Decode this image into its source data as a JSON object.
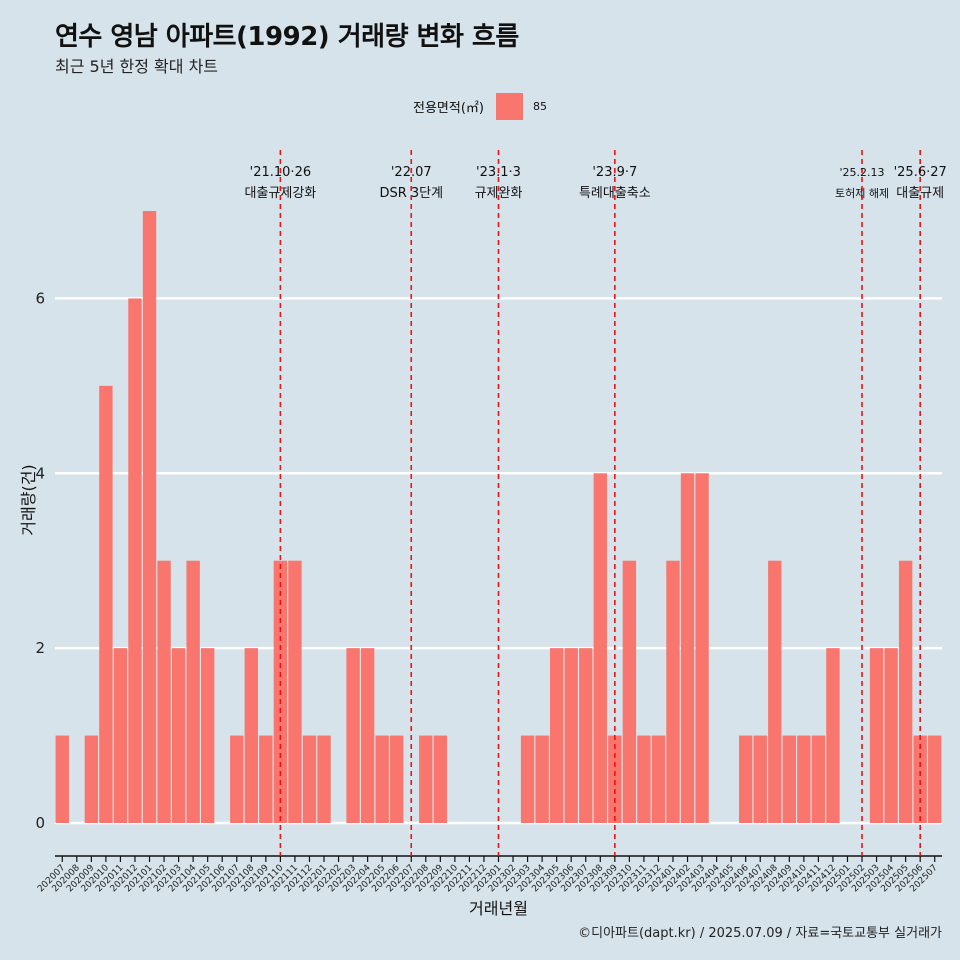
{
  "title": "연수 영남 아파트(1992) 거래량 변화 흐름",
  "subtitle": "최근 5년 한정 확대 차트",
  "legend": {
    "title": "전용면적(㎡)",
    "entry": "85",
    "color": "#f8766d"
  },
  "caption": "©디아파트(dapt.kr) / 2025.07.09 / 자료=국토교통부 실거래가",
  "chart_data": {
    "type": "bar",
    "xlabel": "거래년월",
    "ylabel": "거래량(건)",
    "ylim": [
      0,
      7
    ],
    "yticks": [
      0,
      2,
      4,
      6
    ],
    "grid": true,
    "categories": [
      "202007",
      "202008",
      "202009",
      "202010",
      "202011",
      "202012",
      "202101",
      "202102",
      "202103",
      "202104",
      "202105",
      "202106",
      "202107",
      "202108",
      "202109",
      "202110",
      "202111",
      "202112",
      "202201",
      "202202",
      "202203",
      "202204",
      "202205",
      "202206",
      "202207",
      "202208",
      "202209",
      "202210",
      "202211",
      "202212",
      "202301",
      "202302",
      "202303",
      "202304",
      "202305",
      "202306",
      "202307",
      "202308",
      "202309",
      "202310",
      "202311",
      "202312",
      "202401",
      "202402",
      "202403",
      "202404",
      "202405",
      "202406",
      "202407",
      "202408",
      "202409",
      "202410",
      "202411",
      "202412",
      "202501",
      "202502",
      "202503",
      "202504",
      "202505",
      "202506",
      "202507"
    ],
    "series": [
      {
        "name": "85",
        "values": [
          1,
          0,
          1,
          5,
          2,
          6,
          7,
          3,
          2,
          3,
          2,
          0,
          1,
          2,
          1,
          3,
          3,
          1,
          1,
          0,
          2,
          2,
          1,
          1,
          0,
          1,
          1,
          0,
          0,
          0,
          0,
          0,
          1,
          1,
          2,
          2,
          2,
          4,
          1,
          3,
          1,
          1,
          3,
          4,
          4,
          0,
          0,
          1,
          1,
          3,
          1,
          1,
          1,
          2,
          0,
          0,
          2,
          2,
          3,
          1,
          1
        ]
      }
    ],
    "annotations": [
      {
        "at": "202110",
        "date": "'21.10·26",
        "label": "대출규제강화"
      },
      {
        "at": "202207",
        "date": "'22.07",
        "label": "DSR 3단계"
      },
      {
        "at": "202301",
        "date": "'23.1·3",
        "label": "규제완화"
      },
      {
        "at": "202309",
        "date": "'23.9·7",
        "label": "특례대출축소"
      },
      {
        "at": "202502",
        "date": "'25.2.13",
        "label": "토허제 해제"
      },
      {
        "at": "202506",
        "date": "'25.6·27",
        "label": "대출규제"
      }
    ]
  }
}
